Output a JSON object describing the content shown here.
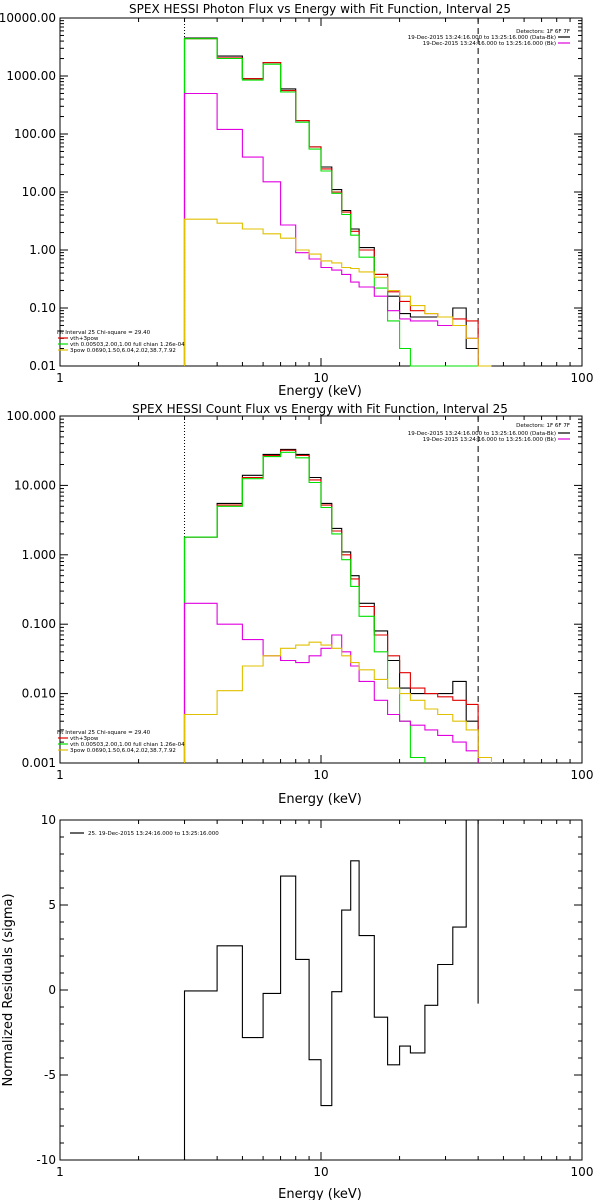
{
  "colors": {
    "black": "#000000",
    "red": "#e00000",
    "green": "#00e000",
    "magenta": "#e000e0",
    "yellow": "#e0c000"
  },
  "chart_data": [
    {
      "type": "line",
      "title": "SPEX HESSI Photon Flux vs Energy with Fit Function, Interval 25",
      "xlabel": "Energy (keV)",
      "ylabel": "",
      "x_scale": "log",
      "y_scale": "log",
      "xlim": [
        1,
        100
      ],
      "ylim": [
        0.01,
        10000
      ],
      "x_tick_labels": [
        "1",
        "10",
        "100"
      ],
      "y_tick_labels": [
        "10000.00",
        "1000.00",
        "100.00",
        "10.00",
        "1.00",
        "0.10",
        "0.01"
      ],
      "y_ticks": [
        10000,
        1000,
        100,
        10,
        1,
        0.1,
        0.01
      ],
      "detectors": "Detectors: 1F 6F 7F",
      "legend_right": [
        "19-Dec-2015 13:24:16.000 to 13:25:16.000 (Data-Bk)",
        "19-Dec-2015 13:24:16.000 to 13:25:16.000 (Bk)"
      ],
      "legend_left": [
        "Fit Interval 25   Chi-square = 29.40",
        "vth+3pow",
        "vth 0.00503,2.00,1.00  full chian 1.26e-04",
        "3pow 0.0690,1.50,6.04,2.02,38.7,7.92"
      ],
      "vlines": [
        {
          "x": 3,
          "style": "dotted"
        },
        {
          "x": 40,
          "style": "dashed"
        }
      ],
      "series": [
        {
          "color": "black",
          "edges": [
            3,
            4,
            5,
            6,
            7,
            8,
            9,
            10,
            11,
            12,
            13,
            14,
            16,
            18,
            20,
            22,
            25,
            28,
            32,
            36,
            40
          ],
          "values": [
            4500,
            2200,
            900,
            1700,
            600,
            170,
            60,
            27,
            11,
            4.8,
            2.3,
            1.1,
            0.38,
            0.16,
            0.08,
            0.07,
            0.07,
            0.07,
            0.1,
            0.02
          ]
        },
        {
          "color": "red",
          "edges": [
            3,
            4,
            5,
            6,
            7,
            8,
            9,
            10,
            11,
            12,
            13,
            14,
            16,
            18,
            20,
            22,
            25,
            28,
            32,
            36,
            40
          ],
          "values": [
            4400,
            2050,
            900,
            1700,
            560,
            170,
            60,
            25,
            10,
            4.5,
            2.1,
            1.0,
            0.38,
            0.19,
            0.13,
            0.09,
            0.08,
            0.07,
            0.065,
            0.06
          ]
        },
        {
          "color": "green",
          "edges": [
            3,
            4,
            5,
            6,
            7,
            8,
            9,
            10,
            11,
            12,
            13,
            14,
            16,
            18,
            20,
            22,
            25,
            28,
            32,
            36,
            40
          ],
          "values": [
            4400,
            2000,
            850,
            1600,
            530,
            160,
            55,
            23,
            9.5,
            4.1,
            1.8,
            0.75,
            0.22,
            0.06,
            0.02,
            0.008,
            0.008,
            0.008,
            0.008,
            0.008
          ]
        },
        {
          "color": "magenta",
          "edges": [
            3,
            4,
            5,
            6,
            7,
            8,
            9,
            10,
            11,
            12,
            13,
            14,
            16,
            18,
            20,
            22,
            25,
            28,
            32,
            36,
            40
          ],
          "values": [
            500,
            120,
            40,
            15,
            2.7,
            0.9,
            0.7,
            0.5,
            0.45,
            0.38,
            0.28,
            0.23,
            0.16,
            0.09,
            0.065,
            0.06,
            0.06,
            0.05,
            0.05,
            0.03
          ]
        },
        {
          "color": "yellow",
          "edges": [
            3,
            4,
            5,
            6,
            7,
            8,
            9,
            10,
            11,
            12,
            13,
            14,
            16,
            18,
            20,
            22,
            25,
            28,
            32,
            36,
            40,
            45
          ],
          "values": [
            3.4,
            2.9,
            2.3,
            1.9,
            1.6,
            1.0,
            0.85,
            0.65,
            0.6,
            0.5,
            0.48,
            0.42,
            0.34,
            0.2,
            0.16,
            0.11,
            0.08,
            0.07,
            0.05,
            0.03,
            0.01
          ]
        }
      ]
    },
    {
      "type": "line",
      "title": "SPEX HESSI Count Flux vs Energy with Fit Function, Interval 25",
      "xlabel": "Energy (keV)",
      "ylabel": "",
      "x_scale": "log",
      "y_scale": "log",
      "xlim": [
        1,
        100
      ],
      "ylim": [
        0.001,
        100
      ],
      "x_tick_labels": [
        "1",
        "10",
        "100"
      ],
      "y_tick_labels": [
        "100.000",
        "10.000",
        "1.000",
        "0.100",
        "0.010",
        "0.001"
      ],
      "y_ticks": [
        100,
        10,
        1,
        0.1,
        0.01,
        0.001
      ],
      "detectors": "Detectors: 1F 6F 7F",
      "legend_right": [
        "19-Dec-2015 13:24:16.000 to 13:25:16.000 (Data-Bk)",
        "19-Dec-2015 13:24:16.000 to 13:25:16.000 (Bk)"
      ],
      "legend_left": [
        "Fit Interval 25   Chi-square = 29.40",
        "vth+3pow",
        "vth 0.00503,2.00,1.00  full chian 1.26e-04",
        "3pow 0.0690,1.50,6.04,2.02,38.7,7.92"
      ],
      "vlines": [
        {
          "x": 3,
          "style": "dotted"
        },
        {
          "x": 40,
          "style": "dashed"
        }
      ],
      "series": [
        {
          "color": "black",
          "edges": [
            3,
            4,
            5,
            6,
            7,
            8,
            9,
            10,
            11,
            12,
            13,
            14,
            16,
            18,
            20,
            22,
            25,
            28,
            32,
            36,
            40
          ],
          "values": [
            1.8,
            5.5,
            14,
            28,
            33,
            28,
            13,
            5.5,
            2.4,
            1.1,
            0.5,
            0.2,
            0.08,
            0.03,
            0.012,
            0.01,
            0.01,
            0.01,
            0.015,
            0.004
          ]
        },
        {
          "color": "red",
          "edges": [
            3,
            4,
            5,
            6,
            7,
            8,
            9,
            10,
            11,
            12,
            13,
            14,
            16,
            18,
            20,
            22,
            25,
            28,
            32,
            36,
            40
          ],
          "values": [
            1.8,
            5.2,
            13,
            27,
            32,
            27,
            12,
            5.2,
            2.2,
            1.0,
            0.45,
            0.18,
            0.07,
            0.035,
            0.02,
            0.012,
            0.01,
            0.009,
            0.008,
            0.007
          ]
        },
        {
          "color": "green",
          "edges": [
            3,
            4,
            5,
            6,
            7,
            8,
            9,
            10,
            11,
            12,
            13,
            14,
            16,
            18,
            20,
            22,
            25
          ],
          "values": [
            1.8,
            5.0,
            12.5,
            26,
            30,
            25,
            11,
            4.8,
            2.0,
            0.85,
            0.35,
            0.13,
            0.04,
            0.012,
            0.004,
            0.0012
          ]
        },
        {
          "color": "magenta",
          "edges": [
            3,
            4,
            5,
            6,
            7,
            8,
            9,
            10,
            11,
            12,
            13,
            14,
            16,
            18,
            20,
            22,
            25,
            28,
            32,
            36,
            40
          ],
          "values": [
            0.2,
            0.1,
            0.06,
            0.035,
            0.03,
            0.028,
            0.035,
            0.045,
            0.07,
            0.04,
            0.025,
            0.015,
            0.008,
            0.005,
            0.004,
            0.0035,
            0.003,
            0.0025,
            0.002,
            0.0015
          ]
        },
        {
          "color": "yellow",
          "edges": [
            3,
            4,
            5,
            6,
            7,
            8,
            9,
            10,
            11,
            12,
            13,
            14,
            16,
            18,
            20,
            22,
            25,
            28,
            32,
            36,
            40,
            45
          ],
          "values": [
            0.005,
            0.011,
            0.025,
            0.035,
            0.045,
            0.05,
            0.055,
            0.05,
            0.045,
            0.035,
            0.028,
            0.022,
            0.016,
            0.012,
            0.01,
            0.008,
            0.006,
            0.005,
            0.004,
            0.003,
            0.0012
          ]
        }
      ]
    },
    {
      "type": "line",
      "title": "",
      "xlabel": "Energy (keV)",
      "ylabel": "Normalized Residuals (sigma)",
      "x_scale": "log",
      "y_scale": "linear",
      "xlim": [
        1,
        100
      ],
      "ylim": [
        -10,
        10
      ],
      "x_tick_labels": [
        "1",
        "10",
        "100"
      ],
      "y_tick_labels": [
        "10",
        "5",
        "0",
        "-5",
        "-10"
      ],
      "y_ticks": [
        10,
        5,
        0,
        -5,
        -10
      ],
      "legend_left": [
        "25. 19-Dec-2015 13:24:16.000 to 13:25:16.000"
      ],
      "series": [
        {
          "color": "black",
          "edges": [
            3,
            4,
            5,
            6,
            7,
            8,
            9,
            10,
            11,
            12,
            13,
            14,
            16,
            18,
            20,
            22,
            25,
            28,
            32,
            36,
            40
          ],
          "values": [
            -0.05,
            2.6,
            -2.8,
            -0.2,
            6.7,
            1.8,
            -4.1,
            -6.8,
            -0.1,
            4.7,
            7.6,
            3.2,
            -1.6,
            -4.4,
            -3.3,
            -3.7,
            -0.9,
            1.5,
            3.7,
            10.0,
            -0.8
          ]
        }
      ]
    }
  ]
}
